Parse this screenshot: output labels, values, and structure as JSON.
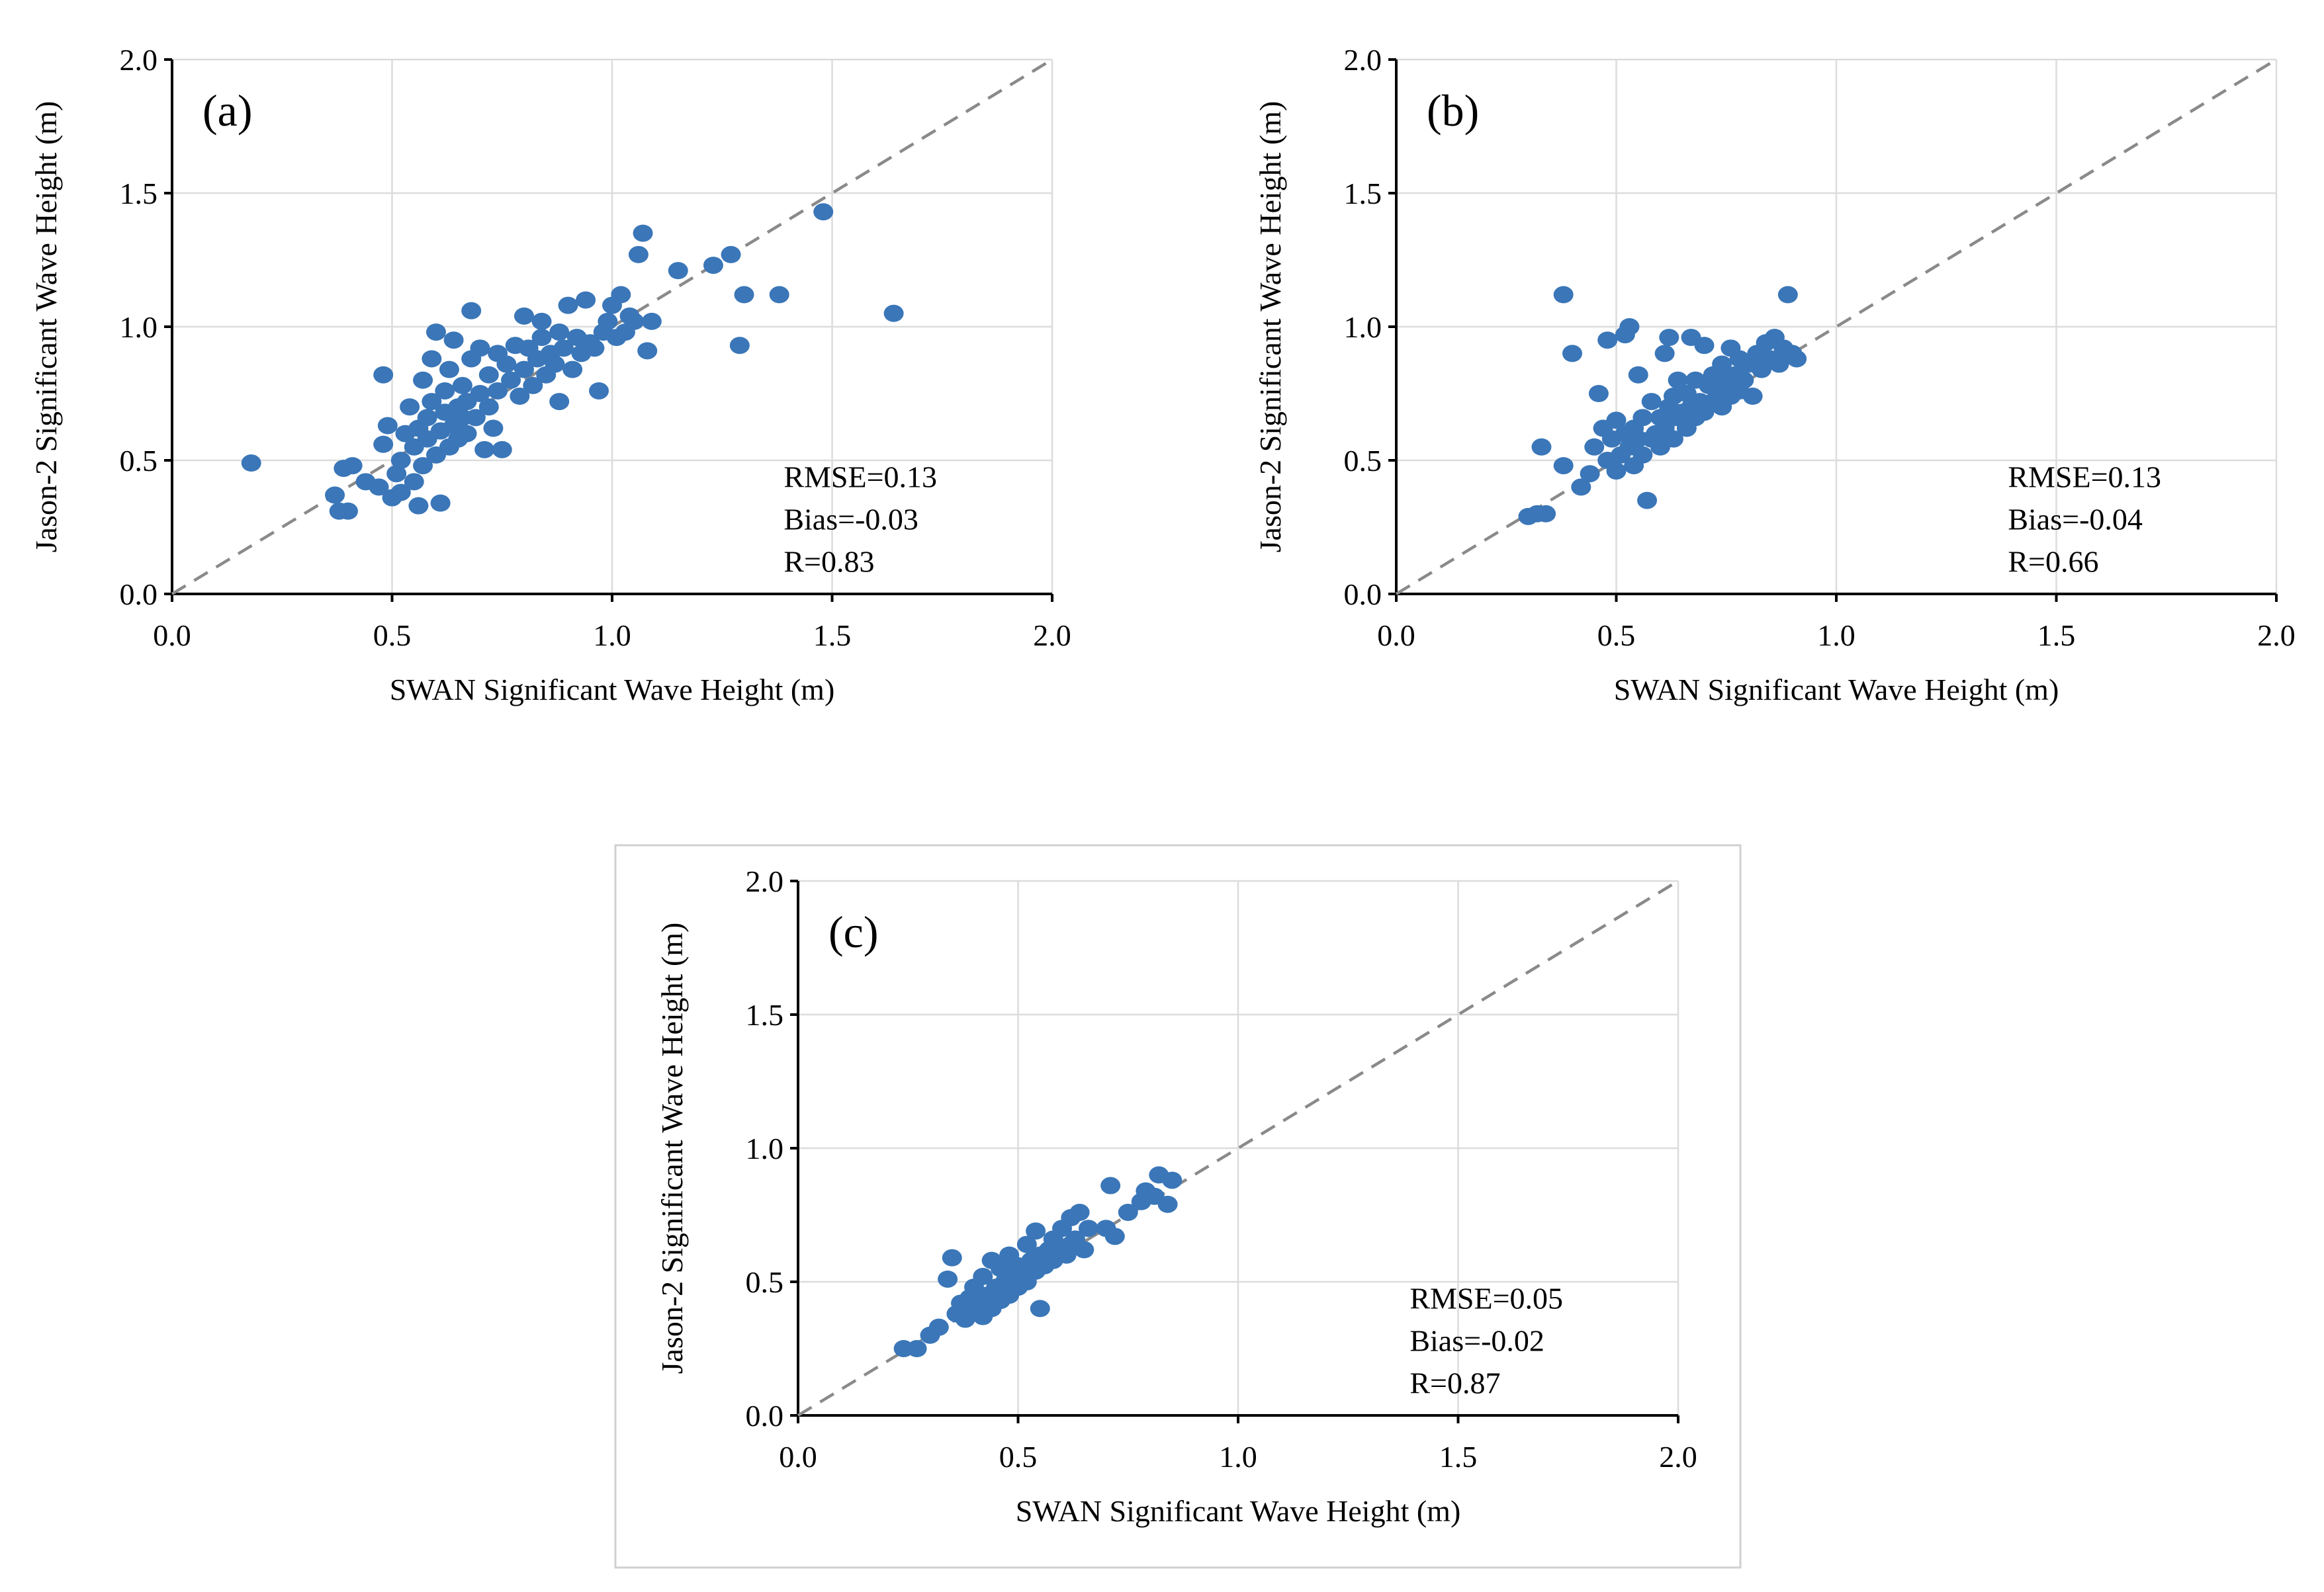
{
  "figure": {
    "point_color": "#3a76b8",
    "reference_line_color": "#8a8a8a",
    "grid_color": "#dcdcdc"
  },
  "chart_data": [
    {
      "type": "scatter",
      "id": "a",
      "panel_label": "(a)",
      "xlabel": "SWAN Significant Wave Height (m)",
      "ylabel": "Jason-2 Significant Wave Height (m)",
      "xlim": [
        0,
        2
      ],
      "ylim": [
        0,
        2
      ],
      "xticks": [
        "0.0",
        "0.5",
        "1.0",
        "1.5",
        "2.0"
      ],
      "yticks": [
        "0.0",
        "0.5",
        "1.0",
        "1.5",
        "2.0"
      ],
      "grid": true,
      "reference_line": "1:1",
      "stats": [
        "RMSE=0.13",
        "Bias=-0.03",
        "R=0.83"
      ],
      "points": [
        [
          0.18,
          0.49
        ],
        [
          0.37,
          0.37
        ],
        [
          0.38,
          0.31
        ],
        [
          0.4,
          0.31
        ],
        [
          0.39,
          0.47
        ],
        [
          0.41,
          0.48
        ],
        [
          0.44,
          0.42
        ],
        [
          0.47,
          0.4
        ],
        [
          0.48,
          0.56
        ],
        [
          0.48,
          0.82
        ],
        [
          0.49,
          0.63
        ],
        [
          0.5,
          0.36
        ],
        [
          0.51,
          0.45
        ],
        [
          0.52,
          0.5
        ],
        [
          0.52,
          0.38
        ],
        [
          0.53,
          0.6
        ],
        [
          0.54,
          0.7
        ],
        [
          0.55,
          0.42
        ],
        [
          0.55,
          0.55
        ],
        [
          0.56,
          0.33
        ],
        [
          0.56,
          0.62
        ],
        [
          0.57,
          0.48
        ],
        [
          0.57,
          0.8
        ],
        [
          0.58,
          0.58
        ],
        [
          0.58,
          0.66
        ],
        [
          0.59,
          0.72
        ],
        [
          0.59,
          0.88
        ],
        [
          0.6,
          0.52
        ],
        [
          0.6,
          0.98
        ],
        [
          0.61,
          0.34
        ],
        [
          0.61,
          0.61
        ],
        [
          0.62,
          0.68
        ],
        [
          0.62,
          0.76
        ],
        [
          0.63,
          0.55
        ],
        [
          0.63,
          0.84
        ],
        [
          0.64,
          0.63
        ],
        [
          0.64,
          0.95
        ],
        [
          0.65,
          0.7
        ],
        [
          0.65,
          0.58
        ],
        [
          0.66,
          0.66
        ],
        [
          0.66,
          0.78
        ],
        [
          0.67,
          0.6
        ],
        [
          0.67,
          0.72
        ],
        [
          0.68,
          1.06
        ],
        [
          0.68,
          0.88
        ],
        [
          0.69,
          0.66
        ],
        [
          0.7,
          0.75
        ],
        [
          0.7,
          0.92
        ],
        [
          0.71,
          0.54
        ],
        [
          0.72,
          0.7
        ],
        [
          0.72,
          0.82
        ],
        [
          0.73,
          0.62
        ],
        [
          0.74,
          0.9
        ],
        [
          0.74,
          0.76
        ],
        [
          0.75,
          0.54
        ],
        [
          0.76,
          0.86
        ],
        [
          0.77,
          0.8
        ],
        [
          0.78,
          0.93
        ],
        [
          0.79,
          0.74
        ],
        [
          0.8,
          0.84
        ],
        [
          0.8,
          1.04
        ],
        [
          0.81,
          0.92
        ],
        [
          0.82,
          0.78
        ],
        [
          0.83,
          0.88
        ],
        [
          0.84,
          0.96
        ],
        [
          0.84,
          1.02
        ],
        [
          0.85,
          0.82
        ],
        [
          0.86,
          0.9
        ],
        [
          0.87,
          0.86
        ],
        [
          0.88,
          0.98
        ],
        [
          0.88,
          0.72
        ],
        [
          0.89,
          0.92
        ],
        [
          0.9,
          1.08
        ],
        [
          0.91,
          0.84
        ],
        [
          0.92,
          0.96
        ],
        [
          0.93,
          0.9
        ],
        [
          0.94,
          1.1
        ],
        [
          0.95,
          0.94
        ],
        [
          0.96,
          0.92
        ],
        [
          0.97,
          0.76
        ],
        [
          0.98,
          0.98
        ],
        [
          0.99,
          1.02
        ],
        [
          1.0,
          1.08
        ],
        [
          1.01,
          0.96
        ],
        [
          1.02,
          1.12
        ],
        [
          1.03,
          0.98
        ],
        [
          1.04,
          1.04
        ],
        [
          1.05,
          1.02
        ],
        [
          1.06,
          1.27
        ],
        [
          1.07,
          1.35
        ],
        [
          1.08,
          0.91
        ],
        [
          1.09,
          1.02
        ],
        [
          1.15,
          1.21
        ],
        [
          1.23,
          1.23
        ],
        [
          1.27,
          1.27
        ],
        [
          1.29,
          0.93
        ],
        [
          1.3,
          1.12
        ],
        [
          1.38,
          1.12
        ],
        [
          1.48,
          1.43
        ],
        [
          1.64,
          1.05
        ]
      ]
    },
    {
      "type": "scatter",
      "id": "b",
      "panel_label": "(b)",
      "xlabel": "SWAN Significant Wave Height (m)",
      "ylabel": "Jason-2 Significant Wave Height (m)",
      "xlim": [
        0,
        2
      ],
      "ylim": [
        0,
        2
      ],
      "xticks": [
        "0.0",
        "0.5",
        "1.0",
        "1.5",
        "2.0"
      ],
      "yticks": [
        "0.0",
        "0.5",
        "1.0",
        "1.5",
        "2.0"
      ],
      "grid": true,
      "reference_line": "1:1",
      "stats": [
        "RMSE=0.13",
        "Bias=-0.04",
        "R=0.66"
      ],
      "points": [
        [
          0.3,
          0.29
        ],
        [
          0.32,
          0.3
        ],
        [
          0.34,
          0.3
        ],
        [
          0.33,
          0.55
        ],
        [
          0.38,
          1.12
        ],
        [
          0.38,
          0.48
        ],
        [
          0.4,
          0.9
        ],
        [
          0.42,
          0.4
        ],
        [
          0.44,
          0.45
        ],
        [
          0.45,
          0.55
        ],
        [
          0.46,
          0.75
        ],
        [
          0.47,
          0.62
        ],
        [
          0.48,
          0.5
        ],
        [
          0.48,
          0.95
        ],
        [
          0.49,
          0.58
        ],
        [
          0.5,
          0.46
        ],
        [
          0.5,
          0.65
        ],
        [
          0.51,
          0.52
        ],
        [
          0.52,
          0.6
        ],
        [
          0.52,
          0.97
        ],
        [
          0.53,
          0.55
        ],
        [
          0.53,
          1.0
        ],
        [
          0.54,
          0.48
        ],
        [
          0.54,
          0.62
        ],
        [
          0.55,
          0.58
        ],
        [
          0.55,
          0.82
        ],
        [
          0.56,
          0.52
        ],
        [
          0.56,
          0.66
        ],
        [
          0.57,
          0.35
        ],
        [
          0.58,
          0.58
        ],
        [
          0.58,
          0.72
        ],
        [
          0.59,
          0.6
        ],
        [
          0.6,
          0.55
        ],
        [
          0.6,
          0.66
        ],
        [
          0.61,
          0.62
        ],
        [
          0.61,
          0.9
        ],
        [
          0.62,
          0.7
        ],
        [
          0.62,
          0.96
        ],
        [
          0.63,
          0.58
        ],
        [
          0.63,
          0.74
        ],
        [
          0.64,
          0.66
        ],
        [
          0.64,
          0.8
        ],
        [
          0.65,
          0.68
        ],
        [
          0.66,
          0.62
        ],
        [
          0.66,
          0.75
        ],
        [
          0.67,
          0.7
        ],
        [
          0.67,
          0.96
        ],
        [
          0.68,
          0.66
        ],
        [
          0.68,
          0.8
        ],
        [
          0.69,
          0.72
        ],
        [
          0.7,
          0.68
        ],
        [
          0.7,
          0.93
        ],
        [
          0.71,
          0.78
        ],
        [
          0.72,
          0.72
        ],
        [
          0.72,
          0.82
        ],
        [
          0.73,
          0.76
        ],
        [
          0.74,
          0.7
        ],
        [
          0.74,
          0.86
        ],
        [
          0.75,
          0.8
        ],
        [
          0.76,
          0.74
        ],
        [
          0.76,
          0.92
        ],
        [
          0.77,
          0.82
        ],
        [
          0.78,
          0.76
        ],
        [
          0.78,
          0.88
        ],
        [
          0.79,
          0.8
        ],
        [
          0.8,
          0.86
        ],
        [
          0.81,
          0.74
        ],
        [
          0.82,
          0.9
        ],
        [
          0.83,
          0.84
        ],
        [
          0.84,
          0.94
        ],
        [
          0.85,
          0.88
        ],
        [
          0.86,
          0.96
        ],
        [
          0.87,
          0.86
        ],
        [
          0.88,
          0.92
        ],
        [
          0.89,
          1.12
        ],
        [
          0.9,
          0.9
        ],
        [
          0.91,
          0.88
        ]
      ]
    },
    {
      "type": "scatter",
      "id": "c",
      "panel_label": "(c)",
      "xlabel": "SWAN Significant Wave Height (m)",
      "ylabel": "Jason-2 Significant Wave Height (m)",
      "xlim": [
        0,
        2
      ],
      "ylim": [
        0,
        2
      ],
      "xticks": [
        "0.0",
        "0.5",
        "1.0",
        "1.5",
        "2.0"
      ],
      "yticks": [
        "0.0",
        "0.5",
        "1.0",
        "1.5",
        "2.0"
      ],
      "grid": true,
      "reference_line": "1:1",
      "stats": [
        "RMSE=0.05",
        "Bias=-0.02",
        "R=0.87"
      ],
      "points": [
        [
          0.24,
          0.25
        ],
        [
          0.27,
          0.25
        ],
        [
          0.3,
          0.3
        ],
        [
          0.32,
          0.33
        ],
        [
          0.34,
          0.51
        ],
        [
          0.35,
          0.59
        ],
        [
          0.36,
          0.38
        ],
        [
          0.37,
          0.42
        ],
        [
          0.38,
          0.36
        ],
        [
          0.39,
          0.44
        ],
        [
          0.4,
          0.39
        ],
        [
          0.4,
          0.48
        ],
        [
          0.41,
          0.42
        ],
        [
          0.42,
          0.52
        ],
        [
          0.42,
          0.37
        ],
        [
          0.43,
          0.45
        ],
        [
          0.44,
          0.4
        ],
        [
          0.44,
          0.58
        ],
        [
          0.45,
          0.48
        ],
        [
          0.46,
          0.43
        ],
        [
          0.46,
          0.55
        ],
        [
          0.47,
          0.5
        ],
        [
          0.48,
          0.45
        ],
        [
          0.48,
          0.6
        ],
        [
          0.49,
          0.52
        ],
        [
          0.5,
          0.48
        ],
        [
          0.5,
          0.56
        ],
        [
          0.51,
          0.53
        ],
        [
          0.52,
          0.5
        ],
        [
          0.52,
          0.64
        ],
        [
          0.53,
          0.58
        ],
        [
          0.54,
          0.54
        ],
        [
          0.54,
          0.69
        ],
        [
          0.55,
          0.6
        ],
        [
          0.55,
          0.4
        ],
        [
          0.56,
          0.56
        ],
        [
          0.57,
          0.62
        ],
        [
          0.58,
          0.58
        ],
        [
          0.58,
          0.66
        ],
        [
          0.59,
          0.62
        ],
        [
          0.6,
          0.7
        ],
        [
          0.61,
          0.6
        ],
        [
          0.62,
          0.64
        ],
        [
          0.62,
          0.74
        ],
        [
          0.63,
          0.66
        ],
        [
          0.64,
          0.76
        ],
        [
          0.65,
          0.62
        ],
        [
          0.66,
          0.7
        ],
        [
          0.7,
          0.7
        ],
        [
          0.71,
          0.86
        ],
        [
          0.72,
          0.67
        ],
        [
          0.75,
          0.76
        ],
        [
          0.78,
          0.8
        ],
        [
          0.79,
          0.84
        ],
        [
          0.81,
          0.82
        ],
        [
          0.82,
          0.9
        ],
        [
          0.84,
          0.79
        ],
        [
          0.85,
          0.88
        ]
      ]
    }
  ]
}
